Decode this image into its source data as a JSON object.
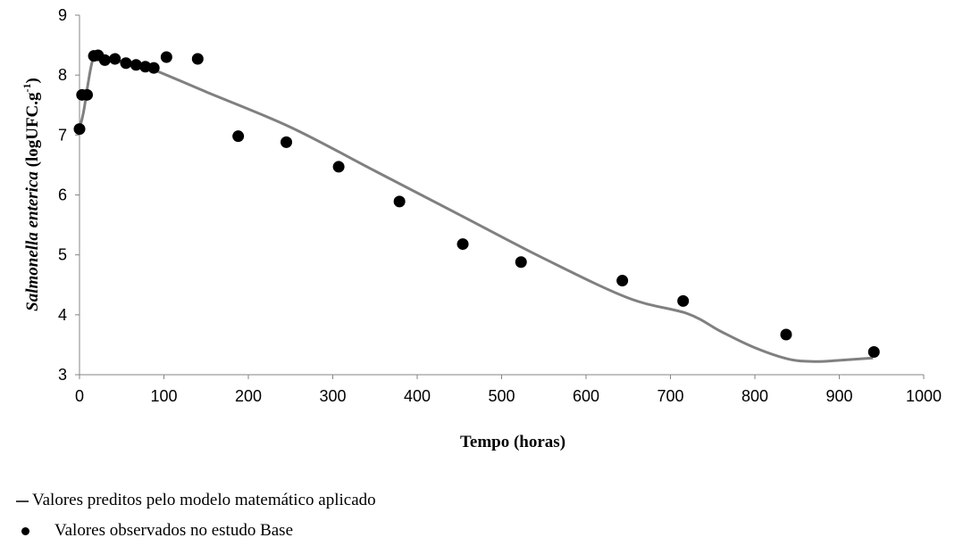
{
  "chart_data": {
    "type": "scatter",
    "xlabel": "Tempo (horas)",
    "ylabel_italic": "Salmonella enterica",
    "ylabel_unit": "(logUFC.g",
    "ylabel_sup": "-1",
    "ylabel_close": ")",
    "xlim": [
      0,
      1000
    ],
    "ylim": [
      3,
      9
    ],
    "x_ticks": [
      0,
      100,
      200,
      300,
      400,
      500,
      600,
      700,
      800,
      900,
      1000
    ],
    "y_ticks": [
      3,
      4,
      5,
      6,
      7,
      8,
      9
    ],
    "grid": false,
    "legend_position": "bottom-left",
    "series": [
      {
        "name": "Valores preditos pelo modelo matemático aplicado",
        "kind": "line",
        "color": "#808080",
        "points": [
          [
            0,
            7.1
          ],
          [
            5,
            7.4
          ],
          [
            10,
            7.85
          ],
          [
            15,
            8.22
          ],
          [
            20,
            8.3
          ],
          [
            30,
            8.27
          ],
          [
            50,
            8.22
          ],
          [
            80,
            8.13
          ],
          [
            150,
            7.72
          ],
          [
            250,
            7.13
          ],
          [
            350,
            6.4
          ],
          [
            450,
            5.67
          ],
          [
            550,
            4.94
          ],
          [
            650,
            4.28
          ],
          [
            720,
            4.02
          ],
          [
            760,
            3.72
          ],
          [
            800,
            3.45
          ],
          [
            840,
            3.26
          ],
          [
            870,
            3.22
          ],
          [
            900,
            3.24
          ],
          [
            940,
            3.28
          ]
        ]
      },
      {
        "name": "Valores observados no estudo Base",
        "kind": "scatter",
        "color": "#000000",
        "points": [
          [
            0,
            7.1
          ],
          [
            3,
            7.67
          ],
          [
            9,
            7.67
          ],
          [
            17,
            8.32
          ],
          [
            22,
            8.33
          ],
          [
            30,
            8.25
          ],
          [
            42,
            8.27
          ],
          [
            55,
            8.2
          ],
          [
            67,
            8.17
          ],
          [
            78,
            8.14
          ],
          [
            88,
            8.12
          ],
          [
            103,
            8.3
          ],
          [
            140,
            8.27
          ],
          [
            188,
            6.98
          ],
          [
            245,
            6.88
          ],
          [
            307,
            6.47
          ],
          [
            379,
            5.89
          ],
          [
            454,
            5.18
          ],
          [
            523,
            4.88
          ],
          [
            643,
            4.57
          ],
          [
            715,
            4.23
          ],
          [
            837,
            3.67
          ],
          [
            941,
            3.38
          ]
        ]
      }
    ]
  }
}
